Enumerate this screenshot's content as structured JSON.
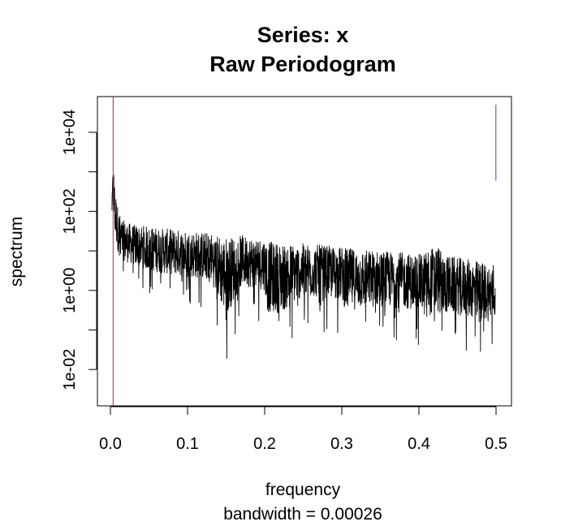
{
  "chart_data": {
    "type": "line",
    "title": "Series: x",
    "subtitle": "Raw Periodogram",
    "xlabel": "frequency",
    "xlabel_sub": "bandwidth = 0.00026",
    "ylabel": "spectrum",
    "y_scale": "log",
    "xlim": [
      0.0,
      0.5
    ],
    "ylim": [
      0.0012,
      80000
    ],
    "x_ticks": [
      0.0,
      0.1,
      0.2,
      0.3,
      0.4,
      0.5
    ],
    "x_tick_labels": [
      "0.0",
      "0.1",
      "0.2",
      "0.3",
      "0.4",
      "0.5"
    ],
    "y_ticks": [
      0.01,
      1,
      100,
      10000
    ],
    "y_tick_labels": [
      "1e-02",
      "1e+00",
      "1e+02",
      "1e+04"
    ],
    "y_minor_ticks": [
      0.001,
      0.1,
      10,
      1000,
      100000
    ],
    "grid": false,
    "series": [
      {
        "color": "#000000",
        "n_points": 1920,
        "x": [
          0.002,
          0.003,
          0.004,
          0.005,
          0.006,
          0.008,
          0.01,
          0.015,
          0.02,
          0.03,
          0.04,
          0.05,
          0.07,
          0.1,
          0.13,
          0.15,
          0.17,
          0.2,
          0.205,
          0.25,
          0.3,
          0.305,
          0.35,
          0.4,
          0.425,
          0.43,
          0.45,
          0.48,
          0.49,
          0.499
        ],
        "upper_envelope": [
          200,
          1500,
          2500,
          1000,
          600,
          300,
          150,
          80,
          70,
          60,
          60,
          55,
          50,
          45,
          40,
          38,
          35,
          30,
          28,
          22,
          18,
          18,
          15,
          12,
          25,
          12,
          10,
          8,
          7,
          8
        ],
        "lower_envelope": [
          50,
          20,
          10,
          5,
          3,
          2.5,
          2,
          1.5,
          1.2,
          1,
          0.8,
          0.6,
          0.5,
          0.4,
          0.3,
          0.012,
          0.2,
          0.15,
          0.008,
          0.1,
          0.08,
          0.03,
          0.05,
          0.04,
          0.003,
          0.03,
          0.03,
          0.02,
          0.02,
          0.004
        ]
      }
    ],
    "vertical_lines": [
      {
        "x": 0.0035,
        "color": "#b03030"
      },
      {
        "x": 0.4998,
        "y_from": 600,
        "y_to": 50000,
        "color": "#6a3a8a"
      }
    ]
  }
}
